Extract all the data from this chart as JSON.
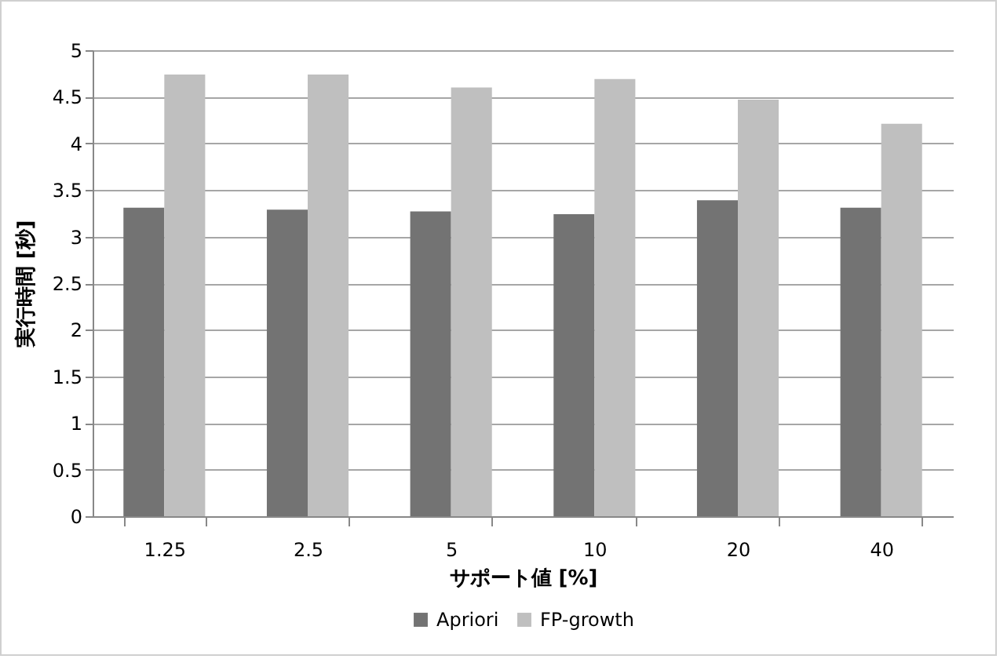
{
  "chart_data": {
    "type": "bar",
    "xlabel": "サポート値 [%]",
    "ylabel": "実行時間 [秒]",
    "categories": [
      "1.25",
      "2.5",
      "5",
      "10",
      "20",
      "40"
    ],
    "series": [
      {
        "name": "Apriori",
        "color": "#737373",
        "values": [
          3.31,
          3.29,
          3.27,
          3.24,
          3.39,
          3.31
        ]
      },
      {
        "name": "FP-growth",
        "color": "#bfbfbf",
        "values": [
          4.74,
          4.74,
          4.6,
          4.69,
          4.47,
          4.21
        ]
      }
    ],
    "ylim": [
      0,
      5
    ],
    "yticks": [
      0,
      0.5,
      1,
      1.5,
      2,
      2.5,
      3,
      3.5,
      4,
      4.5,
      5
    ],
    "grid": "y",
    "legend": "bottom"
  }
}
